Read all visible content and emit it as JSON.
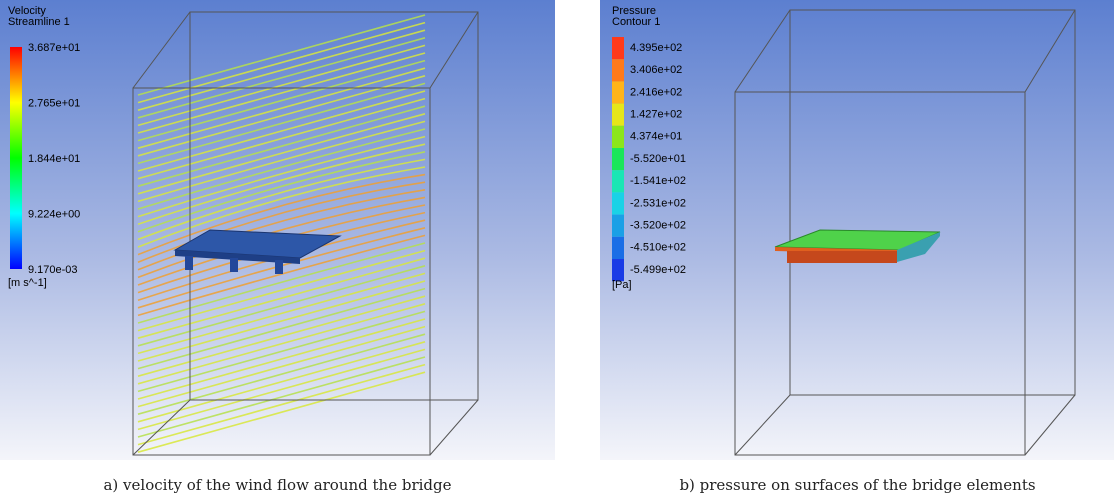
{
  "panels": [
    {
      "legend": {
        "title": "Velocity",
        "subtitle": "Streamline 1",
        "labels": [
          "3.687e+01",
          "2.765e+01",
          "1.844e+01",
          "9.224e+00",
          "9.170e-03"
        ],
        "unit": "[m s^-1]"
      },
      "caption": "a) velocity of the wind flow around the bridge"
    },
    {
      "legend": {
        "title": "Pressure",
        "subtitle": "Contour 1",
        "labels": [
          "4.395e+02",
          "3.406e+02",
          "2.416e+02",
          "1.427e+02",
          "4.374e+01",
          "-5.520e+01",
          "-1.541e+02",
          "-2.531e+02",
          "-3.520e+02",
          "-4.510e+02",
          "-5.499e+02"
        ],
        "unit": "[Pa]"
      },
      "caption": "b) pressure on surfaces of the bridge elements"
    }
  ]
}
